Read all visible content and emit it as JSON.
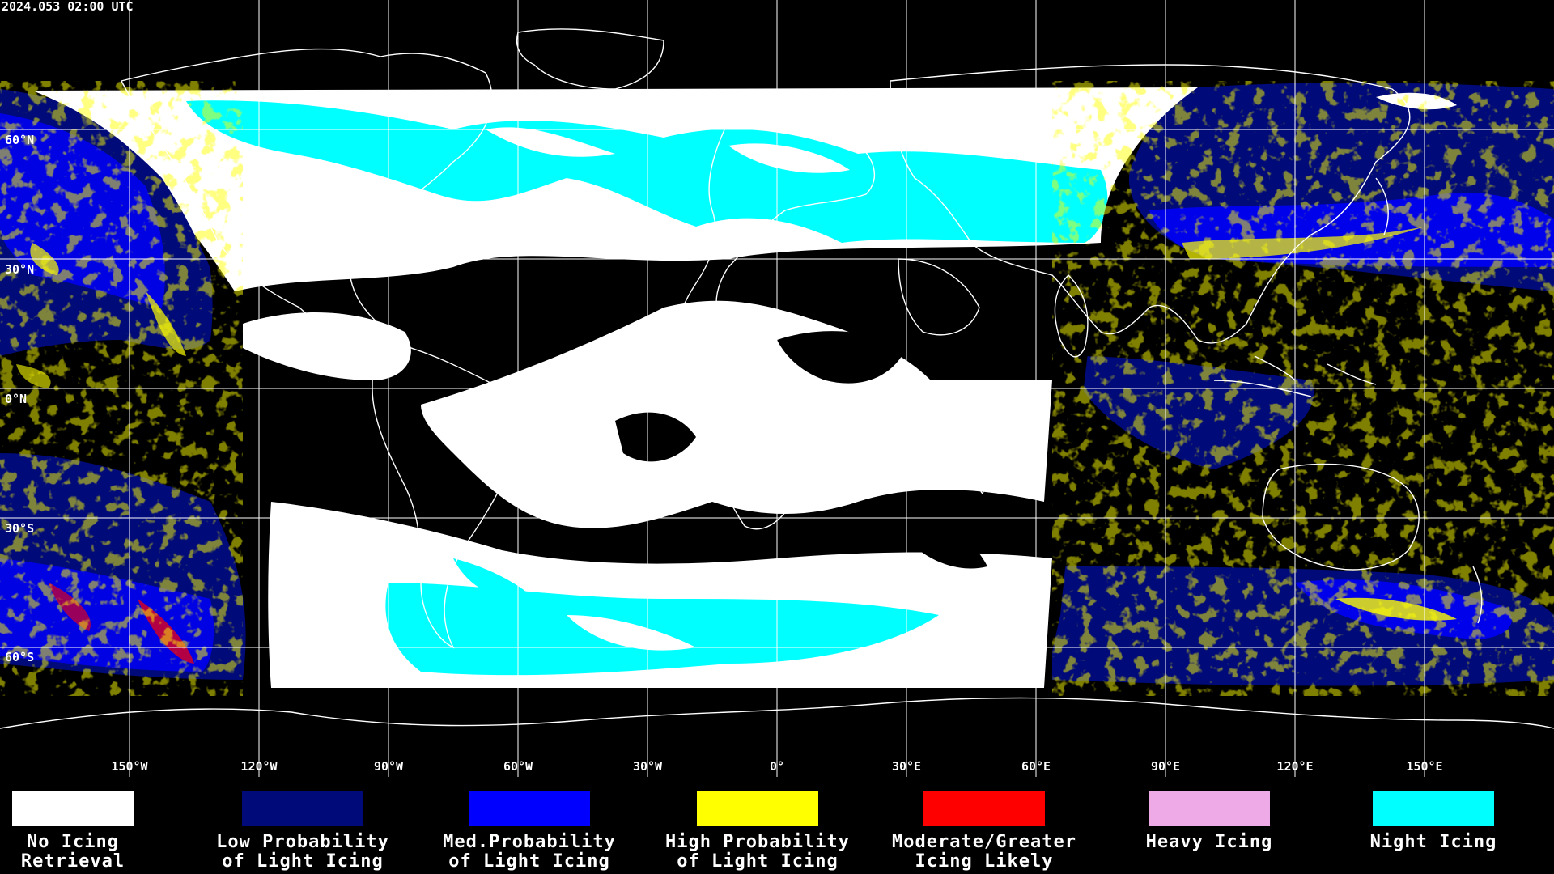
{
  "timestamp": "2024.053 02:00 UTC",
  "lat_labels": [
    "60°N",
    "30°N",
    "0°N",
    "30°S",
    "60°S"
  ],
  "lon_labels": [
    "150°W",
    "120°W",
    "90°W",
    "60°W",
    "30°W",
    "0°",
    "30°E",
    "60°E",
    "90°E",
    "120°E",
    "150°E"
  ],
  "legend": [
    {
      "label": "No Icing\nRetrieval",
      "color": "#ffffff"
    },
    {
      "label": "Low Probability\nof Light Icing",
      "color": "#000a78"
    },
    {
      "label": "Med.Probability\nof Light Icing",
      "color": "#0000ff"
    },
    {
      "label": "High Probability\nof Light Icing",
      "color": "#ffff00"
    },
    {
      "label": "Moderate/Greater\nIcing Likely",
      "color": "#ff0000"
    },
    {
      "label": "Heavy Icing",
      "color": "#eeaae6"
    },
    {
      "label": "Night Icing",
      "color": "#00ffff"
    }
  ],
  "colors": {
    "background": "#000000",
    "grid": "#ffffff",
    "coastline": "#ffffff"
  }
}
